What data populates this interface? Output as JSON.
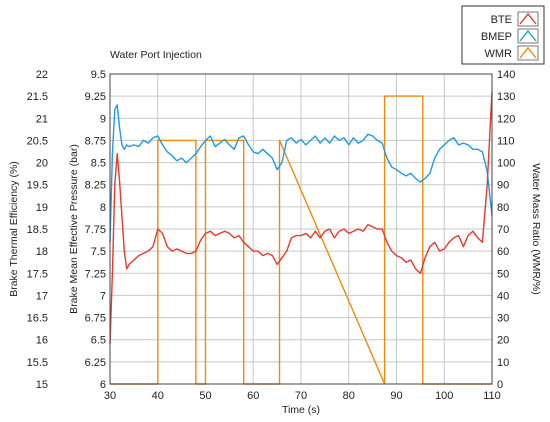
{
  "chart_data": {
    "type": "line",
    "title": "Water Port Injection",
    "xlabel": "Time (s)",
    "xlim": [
      30,
      110
    ],
    "x_ticks": [
      30,
      40,
      50,
      60,
      70,
      80,
      90,
      100,
      110
    ],
    "axes": {
      "bte": {
        "label": "Brake Thermal Efficiency (%)",
        "lim": [
          15,
          22
        ],
        "ticks": [
          "15",
          "15.5",
          "16",
          "16.5",
          "17",
          "17.5",
          "18",
          "18.5",
          "19",
          "19.5",
          "20",
          "20.5",
          "21",
          "21.5",
          "22"
        ]
      },
      "bmep": {
        "label": "Brake Mean Effective Pressure (bar)",
        "lim": [
          6,
          9.5
        ],
        "ticks": [
          "6",
          "6.25",
          "6.5",
          "6.75",
          "7",
          "7.25",
          "7.5",
          "7.75",
          "8",
          "8.25",
          "8.5",
          "8.75",
          "9",
          "9.25",
          "9.5"
        ]
      },
      "wmr": {
        "label": "Water Mass Ratio (WMR/%)",
        "lim": [
          0,
          140
        ],
        "ticks": [
          "0",
          "10",
          "20",
          "30",
          "40",
          "50",
          "60",
          "70",
          "80",
          "90",
          "100",
          "110",
          "120",
          "130",
          "140"
        ]
      }
    },
    "legend": {
      "position": "top-right",
      "entries": [
        {
          "name": "BTE",
          "color": "#e8392f"
        },
        {
          "name": "BMEP",
          "color": "#1e9ce0"
        },
        {
          "name": "WMR",
          "color": "#f08a0c"
        }
      ]
    },
    "grid": true,
    "series": [
      {
        "name": "BTE",
        "axis": "bte",
        "color": "#e8392f",
        "x": [
          30,
          30.5,
          31,
          31.5,
          32,
          32.5,
          33,
          33.5,
          34,
          35,
          36,
          37,
          38,
          39,
          40,
          41,
          42,
          43,
          44,
          45,
          46,
          47,
          48,
          49,
          50,
          51,
          52,
          53,
          54,
          55,
          56,
          57,
          58,
          59,
          60,
          61,
          62,
          63,
          64,
          65,
          66,
          67,
          68,
          69,
          70,
          71,
          72,
          73,
          74,
          75,
          76,
          77,
          78,
          79,
          80,
          81,
          82,
          83,
          84,
          85,
          86,
          87,
          88,
          89,
          90,
          91,
          92,
          93,
          94,
          95,
          96,
          97,
          98,
          99,
          100,
          101,
          102,
          103,
          104,
          105,
          106,
          107,
          108,
          109,
          110
        ],
        "y": [
          15.9,
          17.5,
          19.5,
          20.2,
          19.6,
          18.8,
          18.0,
          17.6,
          17.7,
          17.8,
          17.9,
          17.95,
          18.0,
          18.1,
          18.5,
          18.4,
          18.1,
          18.0,
          18.05,
          18.0,
          17.95,
          17.95,
          18.0,
          18.25,
          18.4,
          18.45,
          18.35,
          18.4,
          18.45,
          18.4,
          18.3,
          18.35,
          18.2,
          18.1,
          18.0,
          18.0,
          17.9,
          17.95,
          17.9,
          17.7,
          17.85,
          18.0,
          18.3,
          18.35,
          18.35,
          18.4,
          18.3,
          18.45,
          18.3,
          18.45,
          18.5,
          18.3,
          18.45,
          18.5,
          18.4,
          18.45,
          18.5,
          18.45,
          18.6,
          18.55,
          18.5,
          18.5,
          18.2,
          18.0,
          17.9,
          17.85,
          17.75,
          17.8,
          17.6,
          17.5,
          17.85,
          18.1,
          18.2,
          18.0,
          18.05,
          18.2,
          18.3,
          18.35,
          18.1,
          18.35,
          18.45,
          18.3,
          18.2,
          19.5,
          21.6
        ]
      },
      {
        "name": "BMEP",
        "axis": "bmep",
        "color": "#1e9ce0",
        "x": [
          30,
          30.5,
          31,
          31.5,
          32,
          32.5,
          33,
          33.5,
          34,
          35,
          36,
          37,
          38,
          39,
          40,
          41,
          42,
          43,
          44,
          45,
          46,
          47,
          48,
          49,
          50,
          51,
          52,
          53,
          54,
          55,
          56,
          57,
          58,
          59,
          60,
          61,
          62,
          63,
          64,
          65,
          66,
          67,
          68,
          69,
          70,
          71,
          72,
          73,
          74,
          75,
          76,
          77,
          78,
          79,
          80,
          81,
          82,
          83,
          84,
          85,
          86,
          87,
          88,
          89,
          90,
          91,
          92,
          93,
          94,
          95,
          96,
          97,
          98,
          99,
          100,
          101,
          102,
          103,
          104,
          105,
          106,
          107,
          108,
          109,
          110
        ],
        "y": [
          7.6,
          8.6,
          9.1,
          9.15,
          8.9,
          8.7,
          8.65,
          8.7,
          8.68,
          8.7,
          8.68,
          8.75,
          8.72,
          8.78,
          8.8,
          8.7,
          8.62,
          8.58,
          8.52,
          8.55,
          8.5,
          8.55,
          8.6,
          8.68,
          8.75,
          8.8,
          8.68,
          8.72,
          8.76,
          8.7,
          8.65,
          8.78,
          8.8,
          8.7,
          8.62,
          8.6,
          8.65,
          8.6,
          8.55,
          8.42,
          8.5,
          8.75,
          8.78,
          8.72,
          8.76,
          8.7,
          8.75,
          8.8,
          8.72,
          8.78,
          8.72,
          8.8,
          8.75,
          8.78,
          8.7,
          8.78,
          8.72,
          8.75,
          8.82,
          8.8,
          8.75,
          8.72,
          8.55,
          8.45,
          8.42,
          8.38,
          8.35,
          8.38,
          8.32,
          8.28,
          8.32,
          8.38,
          8.55,
          8.65,
          8.7,
          8.75,
          8.78,
          8.7,
          8.72,
          8.7,
          8.65,
          8.65,
          8.62,
          8.4,
          7.9
        ]
      },
      {
        "name": "WMR",
        "axis": "wmr",
        "color": "#f08a0c",
        "x": [
          30,
          40,
          40,
          48,
          48,
          50,
          50,
          58,
          58,
          65.5,
          65.5,
          87.5,
          87.5,
          95.5,
          95.5,
          110
        ],
        "y": [
          0,
          0,
          110,
          110,
          0,
          0,
          110,
          110,
          0,
          0,
          110,
          0,
          130,
          130,
          0,
          0
        ]
      }
    ]
  }
}
